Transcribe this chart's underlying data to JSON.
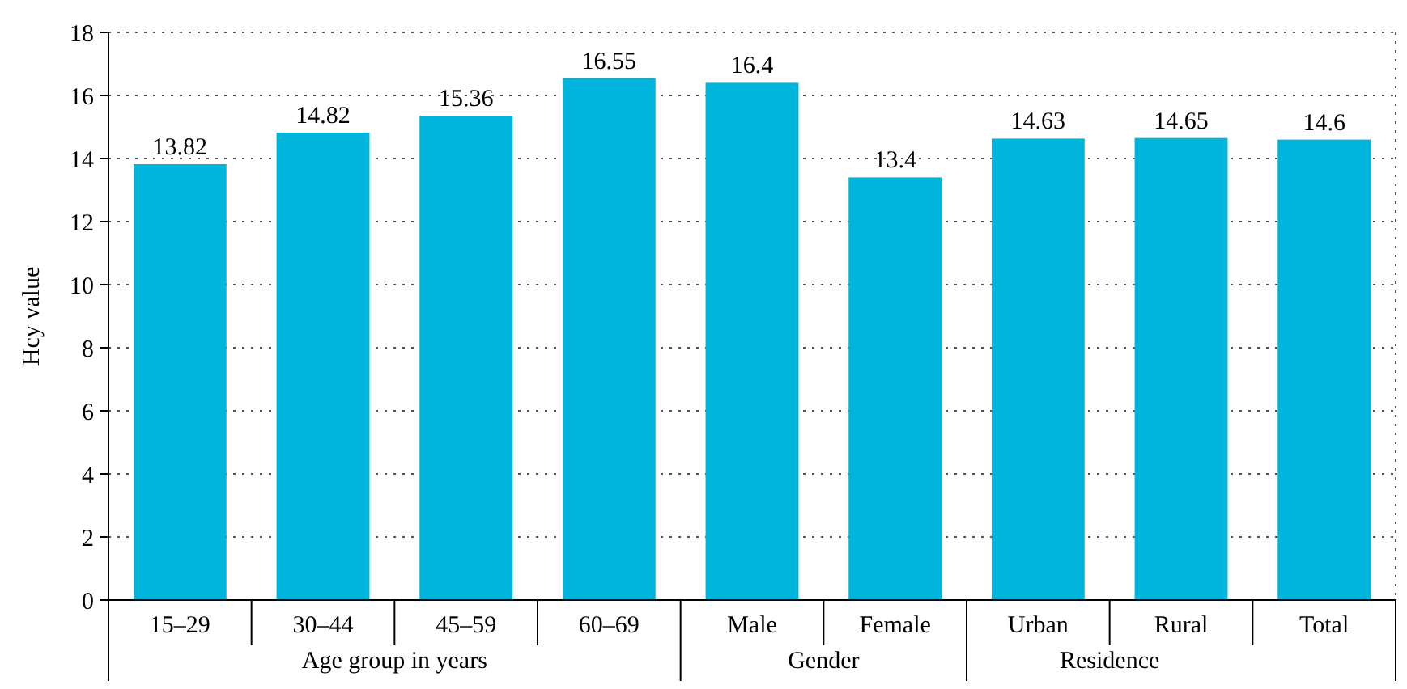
{
  "chart_data": {
    "type": "bar",
    "ylabel": "Hcy value",
    "categories": [
      "15–29",
      "30–44",
      "45–59",
      "60–69",
      "Male",
      "Female",
      "Urban",
      "Rural",
      "Total"
    ],
    "values": [
      13.82,
      14.82,
      15.36,
      16.55,
      16.4,
      13.4,
      14.63,
      14.65,
      14.6
    ],
    "color": "#00b5dc",
    "ylim": [
      0,
      18
    ],
    "yticks": [
      0,
      2,
      4,
      6,
      8,
      10,
      12,
      14,
      16,
      18
    ],
    "grid": "y",
    "data_labels": true,
    "annotations": [
      "Age group in years",
      "Gender",
      "Residence"
    ]
  }
}
